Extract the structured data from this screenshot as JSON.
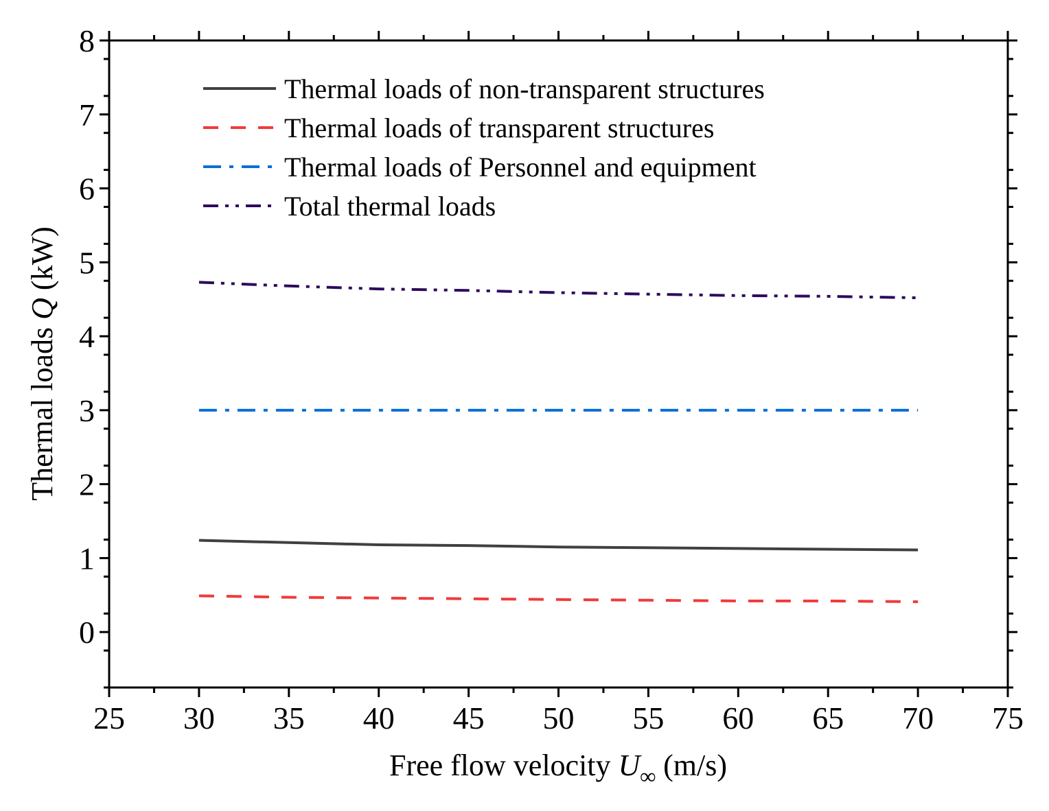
{
  "chart_data": {
    "type": "line",
    "title": "",
    "xlabel": {
      "prefix": "Free flow velocity ",
      "symbol": "U",
      "subscript": "∞",
      "suffix": " (m/s)"
    },
    "ylabel": {
      "prefix": "Thermal loads ",
      "symbol": "Q",
      "suffix": " (kW)"
    },
    "xlim": [
      25,
      75
    ],
    "ylim": [
      -0.75,
      8
    ],
    "xticks": [
      25,
      30,
      35,
      40,
      45,
      50,
      55,
      60,
      65,
      70,
      75
    ],
    "yticks": [
      0,
      1,
      2,
      3,
      4,
      5,
      6,
      7,
      8
    ],
    "legend_position": "top-left",
    "series": [
      {
        "name": "Thermal loads of non-transparent structures",
        "style": "solid",
        "color": "#404040",
        "x": [
          30,
          35,
          40,
          45,
          50,
          55,
          60,
          65,
          70
        ],
        "y": [
          1.24,
          1.21,
          1.18,
          1.17,
          1.15,
          1.14,
          1.13,
          1.12,
          1.11
        ]
      },
      {
        "name": "Thermal loads of transparent structures",
        "style": "dash",
        "color": "#ef3b3b",
        "x": [
          30,
          35,
          40,
          45,
          50,
          55,
          60,
          65,
          70
        ],
        "y": [
          0.49,
          0.47,
          0.46,
          0.45,
          0.44,
          0.43,
          0.42,
          0.42,
          0.41
        ]
      },
      {
        "name": "Thermal loads of Personnel and equipment",
        "style": "dashdot",
        "color": "#0a6fd6",
        "x": [
          30,
          35,
          40,
          45,
          50,
          55,
          60,
          65,
          70
        ],
        "y": [
          3.0,
          3.0,
          3.0,
          3.0,
          3.0,
          3.0,
          3.0,
          3.0,
          3.0
        ]
      },
      {
        "name": "Total thermal loads",
        "style": "dashdotdot",
        "color": "#2e0a5c",
        "x": [
          30,
          35,
          40,
          45,
          50,
          55,
          60,
          65,
          70
        ],
        "y": [
          4.73,
          4.68,
          4.64,
          4.62,
          4.59,
          4.57,
          4.55,
          4.54,
          4.52
        ]
      }
    ]
  }
}
